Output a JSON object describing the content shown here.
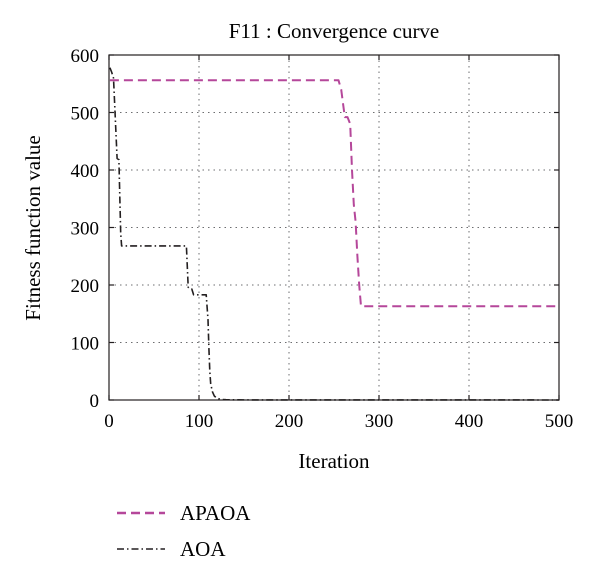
{
  "chart_data": {
    "type": "line",
    "title": "F11 : Convergence curve",
    "xlabel": "Iteration",
    "ylabel": "Fitness function value",
    "xlim": [
      0,
      500
    ],
    "ylim": [
      0,
      600
    ],
    "xticks": [
      0,
      100,
      200,
      300,
      400,
      500
    ],
    "yticks": [
      0,
      100,
      200,
      300,
      400,
      500,
      600
    ],
    "xtick_labels": [
      "0",
      "100",
      "200",
      "300",
      "400",
      "500"
    ],
    "ytick_labels": [
      "0",
      "100",
      "200",
      "300",
      "400",
      "500",
      "600"
    ],
    "grid": true,
    "legend_position": "below",
    "series": [
      {
        "name": "APAOA",
        "color": "#b5479a",
        "style": "dashed",
        "x": [
          1,
          255,
          258,
          262,
          265,
          268,
          270,
          272,
          274,
          276,
          278,
          280,
          290,
          400,
          500
        ],
        "y": [
          556,
          556,
          540,
          492,
          492,
          480,
          400,
          340,
          310,
          250,
          200,
          163,
          163,
          163,
          163
        ]
      },
      {
        "name": "AOA",
        "color": "#231f20",
        "style": "dashdot",
        "x": [
          1,
          3,
          5,
          7,
          9,
          11,
          13,
          14,
          86,
          88,
          90,
          92,
          94,
          96,
          108,
          110,
          111,
          112,
          113,
          115,
          117,
          120,
          125,
          130,
          150,
          200,
          300,
          400,
          500
        ],
        "y": [
          578,
          570,
          560,
          490,
          420,
          418,
          290,
          268,
          268,
          196,
          193,
          193,
          183,
          183,
          183,
          140,
          90,
          50,
          28,
          14,
          7,
          3,
          1,
          0.5,
          0.2,
          0.1,
          0.05,
          0.03,
          0.02
        ]
      }
    ]
  }
}
